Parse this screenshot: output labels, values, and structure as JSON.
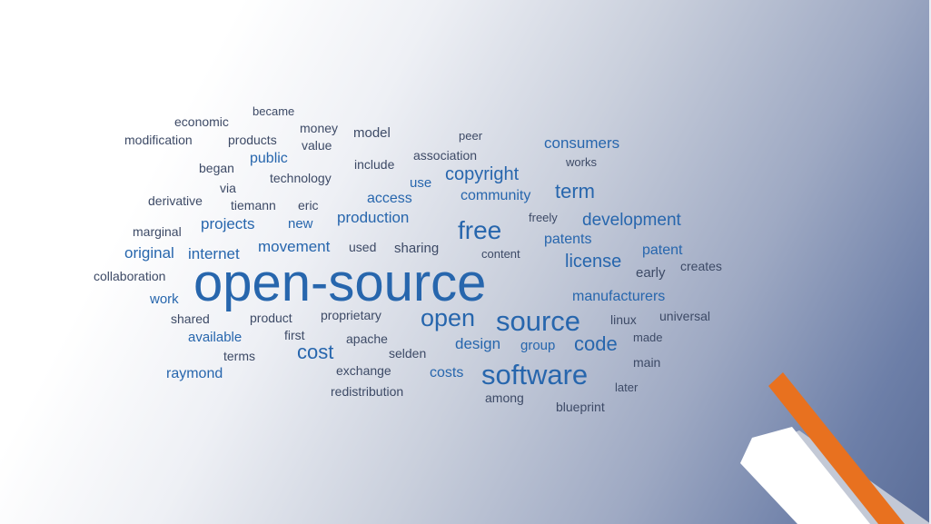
{
  "word_cloud": {
    "words": [
      {
        "text": "open-source",
        "weight": 1
      },
      {
        "text": "software",
        "weight": 0.45
      },
      {
        "text": "source",
        "weight": 0.45
      },
      {
        "text": "open",
        "weight": 0.4
      },
      {
        "text": "free",
        "weight": 0.4
      },
      {
        "text": "code",
        "weight": 0.3
      },
      {
        "text": "term",
        "weight": 0.3
      },
      {
        "text": "cost",
        "weight": 0.3
      },
      {
        "text": "copyright",
        "weight": 0.28
      },
      {
        "text": "development",
        "weight": 0.28
      },
      {
        "text": "license",
        "weight": 0.28
      },
      {
        "text": "consumers",
        "weight": 0.26
      },
      {
        "text": "manufacturers",
        "weight": 0.25
      },
      {
        "text": "design",
        "weight": 0.25
      },
      {
        "text": "internet",
        "weight": 0.25
      },
      {
        "text": "original",
        "weight": 0.25
      },
      {
        "text": "movement",
        "weight": 0.25
      },
      {
        "text": "production",
        "weight": 0.25
      },
      {
        "text": "projects",
        "weight": 0.25
      },
      {
        "text": "patents",
        "weight": 0.24
      },
      {
        "text": "community",
        "weight": 0.24
      },
      {
        "text": "access",
        "weight": 0.24
      },
      {
        "text": "public",
        "weight": 0.24
      },
      {
        "text": "costs",
        "weight": 0.22
      },
      {
        "text": "raymond",
        "weight": 0.22
      },
      {
        "text": "patent",
        "weight": 0.22
      },
      {
        "text": "group",
        "weight": 0.22
      },
      {
        "text": "model",
        "weight": 0.2
      },
      {
        "text": "use",
        "weight": 0.2
      },
      {
        "text": "work",
        "weight": 0.2
      },
      {
        "text": "sharing",
        "weight": 0.2
      },
      {
        "text": "new",
        "weight": 0.2
      },
      {
        "text": "early",
        "weight": 0.2
      },
      {
        "text": "available",
        "weight": 0.2
      },
      {
        "text": "technology",
        "weight": 0.18
      },
      {
        "text": "money",
        "weight": 0.18
      },
      {
        "text": "value",
        "weight": 0.18
      },
      {
        "text": "economic",
        "weight": 0.18
      },
      {
        "text": "products",
        "weight": 0.18
      },
      {
        "text": "modification",
        "weight": 0.18
      },
      {
        "text": "became",
        "weight": 0.17
      },
      {
        "text": "began",
        "weight": 0.17
      },
      {
        "text": "via",
        "weight": 0.17
      },
      {
        "text": "derivative",
        "weight": 0.17
      },
      {
        "text": "tiemann",
        "weight": 0.17
      },
      {
        "text": "eric",
        "weight": 0.17
      },
      {
        "text": "marginal",
        "weight": 0.17
      },
      {
        "text": "include",
        "weight": 0.17
      },
      {
        "text": "association",
        "weight": 0.17
      },
      {
        "text": "peer",
        "weight": 0.16
      },
      {
        "text": "works",
        "weight": 0.16
      },
      {
        "text": "freely",
        "weight": 0.16
      },
      {
        "text": "used",
        "weight": 0.17
      },
      {
        "text": "content",
        "weight": 0.16
      },
      {
        "text": "creates",
        "weight": 0.17
      },
      {
        "text": "collaboration",
        "weight": 0.17
      },
      {
        "text": "shared",
        "weight": 0.17
      },
      {
        "text": "product",
        "weight": 0.17
      },
      {
        "text": "proprietary",
        "weight": 0.17
      },
      {
        "text": "linux",
        "weight": 0.17
      },
      {
        "text": "universal",
        "weight": 0.17
      },
      {
        "text": "first",
        "weight": 0.17
      },
      {
        "text": "apache",
        "weight": 0.17
      },
      {
        "text": "made",
        "weight": 0.16
      },
      {
        "text": "terms",
        "weight": 0.17
      },
      {
        "text": "selden",
        "weight": 0.17
      },
      {
        "text": "main",
        "weight": 0.17
      },
      {
        "text": "exchange",
        "weight": 0.17
      },
      {
        "text": "later",
        "weight": 0.16
      },
      {
        "text": "redistribution",
        "weight": 0.17
      },
      {
        "text": "among",
        "weight": 0.17
      },
      {
        "text": "blueprint",
        "weight": 0.17
      }
    ]
  },
  "decor": {
    "accent_color": "#e8711f",
    "panel_color": "#ffffff",
    "panel_shadow_color": "#c3c9d6"
  },
  "colors": {
    "dark_word": "#3d4a66",
    "blue_word": "#2766ad"
  }
}
